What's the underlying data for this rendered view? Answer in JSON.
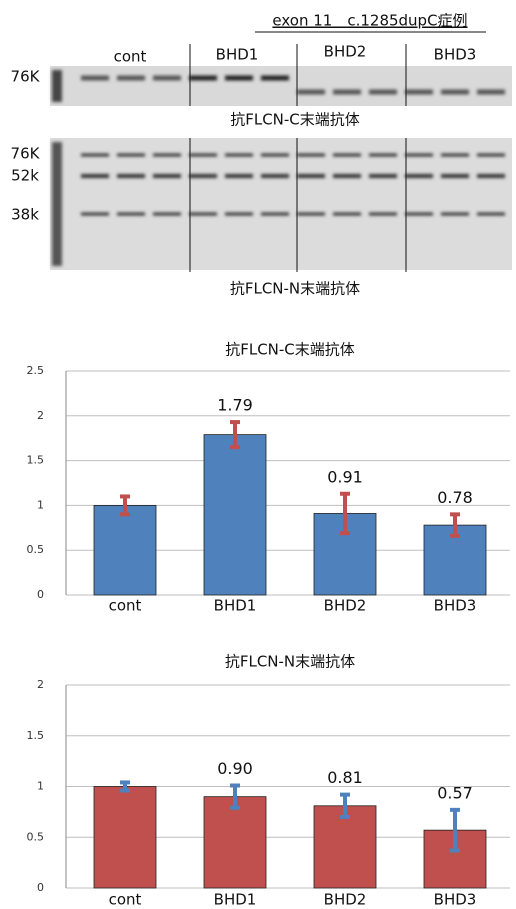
{
  "blot": {
    "title": "exon 11　c.1285dupC症例",
    "groups": [
      "cont",
      "BHD1",
      "BHD2",
      "BHD3"
    ],
    "panels": [
      {
        "markers": [
          "76K"
        ],
        "caption": "抗FLCN-C末端抗体"
      },
      {
        "markers": [
          "76K",
          "52k",
          "38k"
        ],
        "caption": "抗FLCN-N末端抗体"
      }
    ]
  },
  "chart_data": [
    {
      "type": "bar",
      "title": "抗FLCN-C末端抗体",
      "categories": [
        "cont",
        "BHD1",
        "BHD2",
        "BHD3"
      ],
      "values": [
        1.0,
        1.79,
        0.91,
        0.78
      ],
      "value_labels": [
        null,
        "1.79",
        "0.91",
        "0.78"
      ],
      "errors": [
        0.1,
        0.14,
        0.22,
        0.12
      ],
      "color": "#4f81bd",
      "error_color": "#c0504d",
      "ylim": [
        0,
        2.5
      ],
      "yticks": [
        0,
        0.5,
        1,
        1.5,
        2,
        2.5
      ],
      "grid": true
    },
    {
      "type": "bar",
      "title": "抗FLCN-N末端抗体",
      "categories": [
        "cont",
        "BHD1",
        "BHD2",
        "BHD3"
      ],
      "values": [
        1.0,
        0.9,
        0.81,
        0.57
      ],
      "value_labels": [
        null,
        "0.90",
        "0.81",
        "0.57"
      ],
      "errors": [
        0.04,
        0.11,
        0.11,
        0.2
      ],
      "color": "#c0504d",
      "error_color": "#4f81bd",
      "ylim": [
        0,
        2
      ],
      "yticks": [
        0,
        0.5,
        1,
        1.5,
        2
      ],
      "grid": true
    }
  ]
}
